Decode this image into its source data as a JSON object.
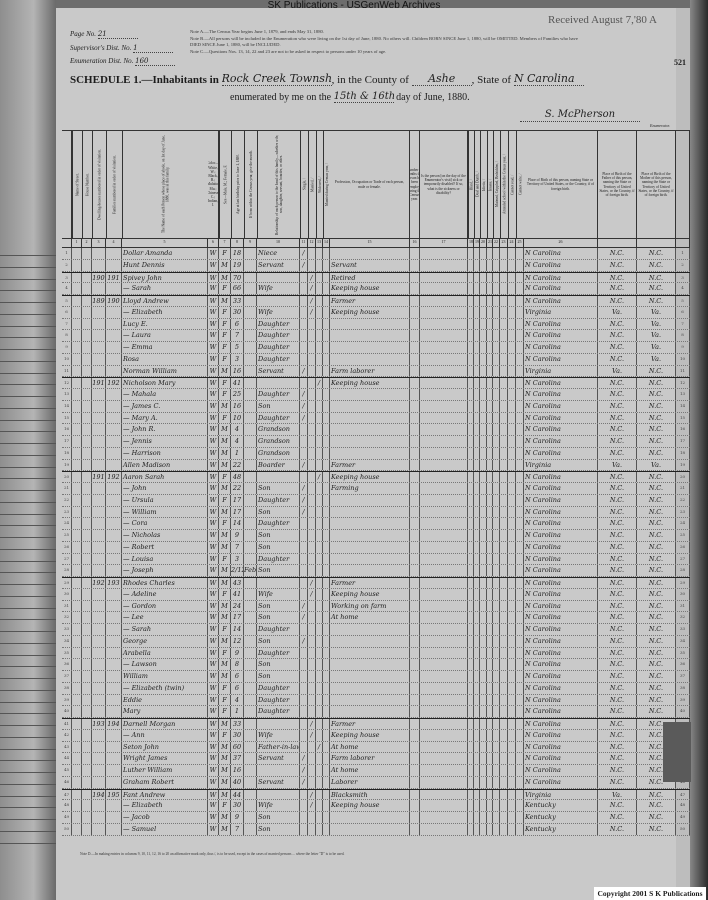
{
  "watermark": "SK Publications - USGenWeb Archives",
  "stamp": "Received August 7,'80 A",
  "sheet_number": "521",
  "meta": {
    "page_label": "Page No.",
    "page_value": "21",
    "supervisor_label": "Supervisor's Dist. No.",
    "supervisor_value": "1",
    "enumeration_label": "Enumeration Dist. No.",
    "enumeration_value": "160"
  },
  "notes": [
    "Note A.—The Census Year begins June 1, 1879, and ends May 31, 1880.",
    "Note B.—All persons will be included in the Enumeration who were living on the 1st day of June, 1880. No others will. Children BORN SINCE June 1, 1880, will be OMITTED. Members of Families who have DIED SINCE June 1, 1880, will be INCLUDED.",
    "Note C.—Questions Nos. 13, 14, 22 and 23 are not to be asked in respect to persons under 10 years of age."
  ],
  "schedule": {
    "title": "SCHEDULE 1.—Inhabitants in",
    "place": "Rock Creek Township",
    "county_label": ", in the County of",
    "county": "Ashe",
    "state_label": ", State of",
    "state": "N Carolina",
    "enumerated_label": "enumerated by me on the",
    "dates": "15th & 16th",
    "day_label": "day of June, 1880.",
    "enumerator": "S. McPherson",
    "enumerator_label": "Enumerator."
  },
  "headers": [
    "Name of Street.",
    "House Number.",
    "Dwelling-houses numbered in order of visitation.",
    "Families numbered in order of visitation.",
    "The Name of each Person whose place of abode, on 1st day of June, 1880, was in this family.",
    "Color—White, W.; Black, B.; Mulatto, Mu.; Chinese, C.; Indian, I.",
    "Sex—Male, M.; Female, F.",
    "Age at last birthday prior to June 1, 1880.",
    "If born within the Census year, give the month.",
    "Relationship of each person to the head of this family—whether wife, son, daughter, servant, boarder, or other.",
    "Single, /",
    "Married, /",
    "Widowed, /",
    "Married during Census year, /",
    "Profession, Occupation or Trade of each person, male or female.",
    "Number of months this person has been unemployed during the Census year.",
    "Is the person [on the day of the Enumerator's visit] sick or temporarily disabled? If so, what is the sickness or disability?",
    "Blind, /",
    "Deaf and Dumb, /",
    "Idiotic, /",
    "Insane, /",
    "Maimed, Crippled, Bedridden, /",
    "Attended school within the Census year, /",
    "Cannot read, /",
    "Cannot write, /",
    "Place of Birth of this person, naming State or Territory of United States, or the Country, if of foreign birth.",
    "Place of Birth of the Father of this person, naming the State or Territory of United States, or the Country, if of foreign birth.",
    "Place of Birth of the Mother of this person, naming the State or Territory of United States, or the Country, if of foreign birth.",
    ""
  ],
  "header_numbers": [
    "1",
    "2",
    "3",
    "4",
    "5",
    "6",
    "7",
    "8",
    "9",
    "10",
    "11",
    "12",
    "13",
    "14",
    "15",
    "16",
    "17",
    "18",
    "19",
    "20",
    "21",
    "22",
    "23",
    "24",
    "25",
    "26",
    ""
  ],
  "rows": [
    {
      "dw": "",
      "fam": "",
      "name": "Dollar Amanda",
      "color": "W",
      "sex": "F",
      "age": "18",
      "rel": "Niece",
      "s": "/",
      "occ": "",
      "bp": "N Carolina",
      "fbp": "N.C.",
      "mbp": "N.C."
    },
    {
      "dw": "",
      "fam": "",
      "name": "Hunt Dennis",
      "color": "W",
      "sex": "M",
      "age": "19",
      "rel": "Servant",
      "s": "/",
      "occ": "Servant",
      "bp": "N Carolina",
      "fbp": "N.C.",
      "mbp": "N.C."
    },
    {
      "dw": "190",
      "fam": "191",
      "name": "Spivey John",
      "color": "W",
      "sex": "M",
      "age": "70",
      "rel": "",
      "m": "/",
      "occ": "Retired",
      "bp": "N Carolina",
      "fbp": "N.C.",
      "mbp": "N.C."
    },
    {
      "dw": "",
      "fam": "",
      "name": "— Sarah",
      "color": "W",
      "sex": "F",
      "age": "66",
      "rel": "Wife",
      "m": "/",
      "occ": "Keeping house",
      "bp": "N Carolina",
      "fbp": "N.C.",
      "mbp": "N.C."
    },
    {
      "dw": "189",
      "fam": "190",
      "name": "Lloyd Andrew",
      "color": "W",
      "sex": "M",
      "age": "33",
      "rel": "",
      "m": "/",
      "occ": "Farmer",
      "bp": "N Carolina",
      "fbp": "N.C.",
      "mbp": "N.C."
    },
    {
      "dw": "",
      "fam": "",
      "name": "— Elizabeth",
      "color": "W",
      "sex": "F",
      "age": "30",
      "rel": "Wife",
      "m": "/",
      "occ": "Keeping house",
      "bp": "Virginia",
      "fbp": "Va.",
      "mbp": "Va."
    },
    {
      "dw": "",
      "fam": "",
      "name": "Lucy E.",
      "color": "W",
      "sex": "F",
      "age": "6",
      "rel": "Daughter",
      "bp": "N Carolina",
      "fbp": "N.C.",
      "mbp": "Va."
    },
    {
      "dw": "",
      "fam": "",
      "name": "— Laura",
      "color": "W",
      "sex": "F",
      "age": "7",
      "rel": "Daughter",
      "bp": "N Carolina",
      "fbp": "N.C.",
      "mbp": "Va."
    },
    {
      "dw": "",
      "fam": "",
      "name": "— Emma",
      "color": "W",
      "sex": "F",
      "age": "5",
      "rel": "Daughter",
      "bp": "N Carolina",
      "fbp": "N.C.",
      "mbp": "Va."
    },
    {
      "dw": "",
      "fam": "",
      "name": "Rosa",
      "color": "W",
      "sex": "F",
      "age": "3",
      "rel": "Daughter",
      "bp": "N Carolina",
      "fbp": "N.C.",
      "mbp": "Va."
    },
    {
      "dw": "",
      "fam": "",
      "name": "Norman William",
      "color": "W",
      "sex": "M",
      "age": "16",
      "rel": "Servant",
      "s": "/",
      "occ": "Farm laborer",
      "bp": "Virginia",
      "fbp": "Va.",
      "mbp": "N.C."
    },
    {
      "dw": "191",
      "fam": "192",
      "name": "Nicholson Mary",
      "color": "W",
      "sex": "F",
      "age": "41",
      "rel": "",
      "w": "/",
      "occ": "Keeping house",
      "bp": "N Carolina",
      "fbp": "N.C.",
      "mbp": "N.C."
    },
    {
      "dw": "",
      "fam": "",
      "name": "— Mahala",
      "color": "W",
      "sex": "F",
      "age": "25",
      "rel": "Daughter",
      "s": "/",
      "occ": "",
      "bp": "N Carolina",
      "fbp": "N.C.",
      "mbp": "N.C."
    },
    {
      "dw": "",
      "fam": "",
      "name": "— James C.",
      "color": "W",
      "sex": "M",
      "age": "16",
      "rel": "Son",
      "s": "/",
      "occ": "",
      "bp": "N Carolina",
      "fbp": "N.C.",
      "mbp": "N.C."
    },
    {
      "dw": "",
      "fam": "",
      "name": "— Mary A.",
      "color": "W",
      "sex": "F",
      "age": "10",
      "rel": "Daughter",
      "s": "/",
      "occ": "",
      "bp": "N Carolina",
      "fbp": "N.C.",
      "mbp": "N.C."
    },
    {
      "dw": "",
      "fam": "",
      "name": "— John R.",
      "color": "W",
      "sex": "M",
      "age": "4",
      "rel": "Grandson",
      "bp": "N Carolina",
      "fbp": "N.C.",
      "mbp": "N.C."
    },
    {
      "dw": "",
      "fam": "",
      "name": "— Jennis",
      "color": "W",
      "sex": "M",
      "age": "4",
      "rel": "Grandson",
      "bp": "N Carolina",
      "fbp": "N.C.",
      "mbp": "N.C."
    },
    {
      "dw": "",
      "fam": "",
      "name": "— Harrison",
      "color": "W",
      "sex": "M",
      "age": "1",
      "rel": "Grandson",
      "bp": "N Carolina",
      "fbp": "N.C.",
      "mbp": "N.C."
    },
    {
      "dw": "",
      "fam": "",
      "name": "Allen Madison",
      "color": "W",
      "sex": "M",
      "age": "22",
      "rel": "Boarder",
      "s": "/",
      "occ": "Farmer",
      "bp": "Virginia",
      "fbp": "Va.",
      "mbp": "Va."
    },
    {
      "dw": "191",
      "fam": "192",
      "name": "Aaron Sarah",
      "color": "W",
      "sex": "F",
      "age": "48",
      "rel": "",
      "w": "/",
      "occ": "Keeping house",
      "bp": "N Carolina",
      "fbp": "N.C.",
      "mbp": "N.C."
    },
    {
      "dw": "",
      "fam": "",
      "name": "— John",
      "color": "W",
      "sex": "M",
      "age": "22",
      "rel": "Son",
      "s": "/",
      "occ": "Farming",
      "bp": "N Carolina",
      "fbp": "N.C.",
      "mbp": "N.C."
    },
    {
      "dw": "",
      "fam": "",
      "name": "— Ursula",
      "color": "W",
      "sex": "F",
      "age": "17",
      "rel": "Daughter",
      "s": "/",
      "occ": "",
      "bp": "N Carolina",
      "fbp": "N.C.",
      "mbp": "N.C."
    },
    {
      "dw": "",
      "fam": "",
      "name": "— William",
      "color": "W",
      "sex": "M",
      "age": "17",
      "rel": "Son",
      "s": "/",
      "occ": "",
      "bp": "N Carolina",
      "fbp": "N.C.",
      "mbp": "N.C."
    },
    {
      "dw": "",
      "fam": "",
      "name": "— Cora",
      "color": "W",
      "sex": "F",
      "age": "14",
      "rel": "Daughter",
      "bp": "N Carolina",
      "fbp": "N.C.",
      "mbp": "N.C."
    },
    {
      "dw": "",
      "fam": "",
      "name": "— Nicholas",
      "color": "W",
      "sex": "M",
      "age": "9",
      "rel": "Son",
      "bp": "N Carolina",
      "fbp": "N.C.",
      "mbp": "N.C."
    },
    {
      "dw": "",
      "fam": "",
      "name": "— Robert",
      "color": "W",
      "sex": "M",
      "age": "7",
      "rel": "Son",
      "bp": "N Carolina",
      "fbp": "N.C.",
      "mbp": "N.C."
    },
    {
      "dw": "",
      "fam": "",
      "name": "— Louisa",
      "color": "W",
      "sex": "F",
      "age": "3",
      "rel": "Daughter",
      "bp": "N Carolina",
      "fbp": "N.C.",
      "mbp": "N.C."
    },
    {
      "dw": "",
      "fam": "",
      "name": "— Joseph",
      "color": "W",
      "sex": "M",
      "age": "2/12",
      "month": "Feb",
      "rel": "Son",
      "bp": "N Carolina",
      "fbp": "N.C.",
      "mbp": "N.C."
    },
    {
      "dw": "192",
      "fam": "193",
      "name": "Rhodes Charles",
      "color": "W",
      "sex": "M",
      "age": "43",
      "rel": "",
      "m": "/",
      "occ": "Farmer",
      "bp": "N Carolina",
      "fbp": "N.C.",
      "mbp": "N.C."
    },
    {
      "dw": "",
      "fam": "",
      "name": "— Adeline",
      "color": "W",
      "sex": "F",
      "age": "41",
      "rel": "Wife",
      "m": "/",
      "occ": "Keeping house",
      "bp": "N Carolina",
      "fbp": "N.C.",
      "mbp": "N.C."
    },
    {
      "dw": "",
      "fam": "",
      "name": "— Gordon",
      "color": "W",
      "sex": "M",
      "age": "24",
      "rel": "Son",
      "s": "/",
      "occ": "Working on farm",
      "bp": "N Carolina",
      "fbp": "N.C.",
      "mbp": "N.C."
    },
    {
      "dw": "",
      "fam": "",
      "name": "— Lee",
      "color": "W",
      "sex": "M",
      "age": "17",
      "rel": "Son",
      "s": "/",
      "occ": "At home",
      "bp": "N Carolina",
      "fbp": "N.C.",
      "mbp": "N.C."
    },
    {
      "dw": "",
      "fam": "",
      "name": "— Sarah",
      "color": "W",
      "sex": "F",
      "age": "14",
      "rel": "Daughter",
      "bp": "N Carolina",
      "fbp": "N.C.",
      "mbp": "N.C."
    },
    {
      "dw": "",
      "fam": "",
      "name": "George",
      "color": "W",
      "sex": "M",
      "age": "12",
      "rel": "Son",
      "s": "/",
      "bp": "N Carolina",
      "fbp": "N.C.",
      "mbp": "N.C."
    },
    {
      "dw": "",
      "fam": "",
      "name": "Arabella",
      "color": "W",
      "sex": "F",
      "age": "9",
      "rel": "Daughter",
      "bp": "N Carolina",
      "fbp": "N.C.",
      "mbp": "N.C."
    },
    {
      "dw": "",
      "fam": "",
      "name": "— Lawson",
      "color": "W",
      "sex": "M",
      "age": "8",
      "rel": "Son",
      "bp": "N Carolina",
      "fbp": "N.C.",
      "mbp": "N.C."
    },
    {
      "dw": "",
      "fam": "",
      "name": "William",
      "color": "W",
      "sex": "M",
      "age": "6",
      "rel": "Son",
      "bp": "N Carolina",
      "fbp": "N.C.",
      "mbp": "N.C."
    },
    {
      "dw": "",
      "fam": "",
      "name": "— Elizabeth (twin)",
      "color": "W",
      "sex": "F",
      "age": "6",
      "rel": "Daughter",
      "bp": "N Carolina",
      "fbp": "N.C.",
      "mbp": "N.C."
    },
    {
      "dw": "",
      "fam": "",
      "name": "Eddie",
      "color": "W",
      "sex": "F",
      "age": "4",
      "rel": "Daughter",
      "bp": "N Carolina",
      "fbp": "N.C.",
      "mbp": "N.C."
    },
    {
      "dw": "",
      "fam": "",
      "name": "Mary",
      "color": "W",
      "sex": "F",
      "age": "1",
      "rel": "Daughter",
      "bp": "N Carolina",
      "fbp": "N.C.",
      "mbp": "N.C."
    },
    {
      "dw": "193",
      "fam": "194",
      "name": "Darnell Morgan",
      "color": "W",
      "sex": "M",
      "age": "33",
      "rel": "",
      "m": "/",
      "occ": "Farmer",
      "bp": "N Carolina",
      "fbp": "N.C.",
      "mbp": "N.C."
    },
    {
      "dw": "",
      "fam": "",
      "name": "— Ann",
      "color": "W",
      "sex": "F",
      "age": "30",
      "rel": "Wife",
      "m": "/",
      "occ": "Keeping house",
      "bp": "N Carolina",
      "fbp": "N.C.",
      "mbp": "N.C."
    },
    {
      "dw": "",
      "fam": "",
      "name": "Seton John",
      "color": "W",
      "sex": "M",
      "age": "60",
      "rel": "Father-in-law",
      "w": "/",
      "occ": "At home",
      "bp": "N Carolina",
      "fbp": "N.C.",
      "mbp": "N.C."
    },
    {
      "dw": "",
      "fam": "",
      "name": "Wright James",
      "color": "W",
      "sex": "M",
      "age": "37",
      "rel": "Servant",
      "s": "/",
      "occ": "Farm laborer",
      "bp": "N Carolina",
      "fbp": "N.C.",
      "mbp": "N.C."
    },
    {
      "dw": "",
      "fam": "",
      "name": "Luther William",
      "color": "W",
      "sex": "M",
      "age": "16",
      "rel": "",
      "s": "/",
      "occ": "At home",
      "bp": "N Carolina",
      "fbp": "N.C.",
      "mbp": "N.C."
    },
    {
      "dw": "",
      "fam": "",
      "name": "Graham Robert",
      "color": "W",
      "sex": "M",
      "age": "40",
      "rel": "Servant",
      "s": "/",
      "occ": "Laborer",
      "bp": "N Carolina",
      "fbp": "N.C.",
      "mbp": "N.C."
    },
    {
      "dw": "194",
      "fam": "195",
      "name": "Fant Andrew",
      "color": "W",
      "sex": "M",
      "age": "44",
      "rel": "",
      "m": "/",
      "occ": "Blacksmith",
      "bp": "Virginia",
      "fbp": "Va.",
      "mbp": "N.C."
    },
    {
      "dw": "",
      "fam": "",
      "name": "— Elizabeth",
      "color": "W",
      "sex": "F",
      "age": "30",
      "rel": "Wife",
      "m": "/",
      "occ": "Keeping house",
      "bp": "Kentucky",
      "fbp": "N.C.",
      "mbp": "N.C."
    },
    {
      "dw": "",
      "fam": "",
      "name": "— Jacob",
      "color": "W",
      "sex": "M",
      "age": "9",
      "rel": "Son",
      "bp": "Kentucky",
      "fbp": "N.C.",
      "mbp": "N.C."
    },
    {
      "dw": "",
      "fam": "",
      "name": "— Samuel",
      "color": "W",
      "sex": "M",
      "age": "7",
      "rel": "Son",
      "bp": "Kentucky",
      "fbp": "N.C.",
      "mbp": "N.C."
    }
  ],
  "family_starts": [
    3,
    5,
    12,
    20,
    29,
    41,
    47
  ],
  "footnote": "Note D.—In making entries in columns 9, 10, 11, 12, 16 to 20 an affirmative mark only, thus /, is to be used, except in the cases of married persons ... where the letter \"D\" is to be used.",
  "copyright": "Copyright 2001 S K Publications"
}
